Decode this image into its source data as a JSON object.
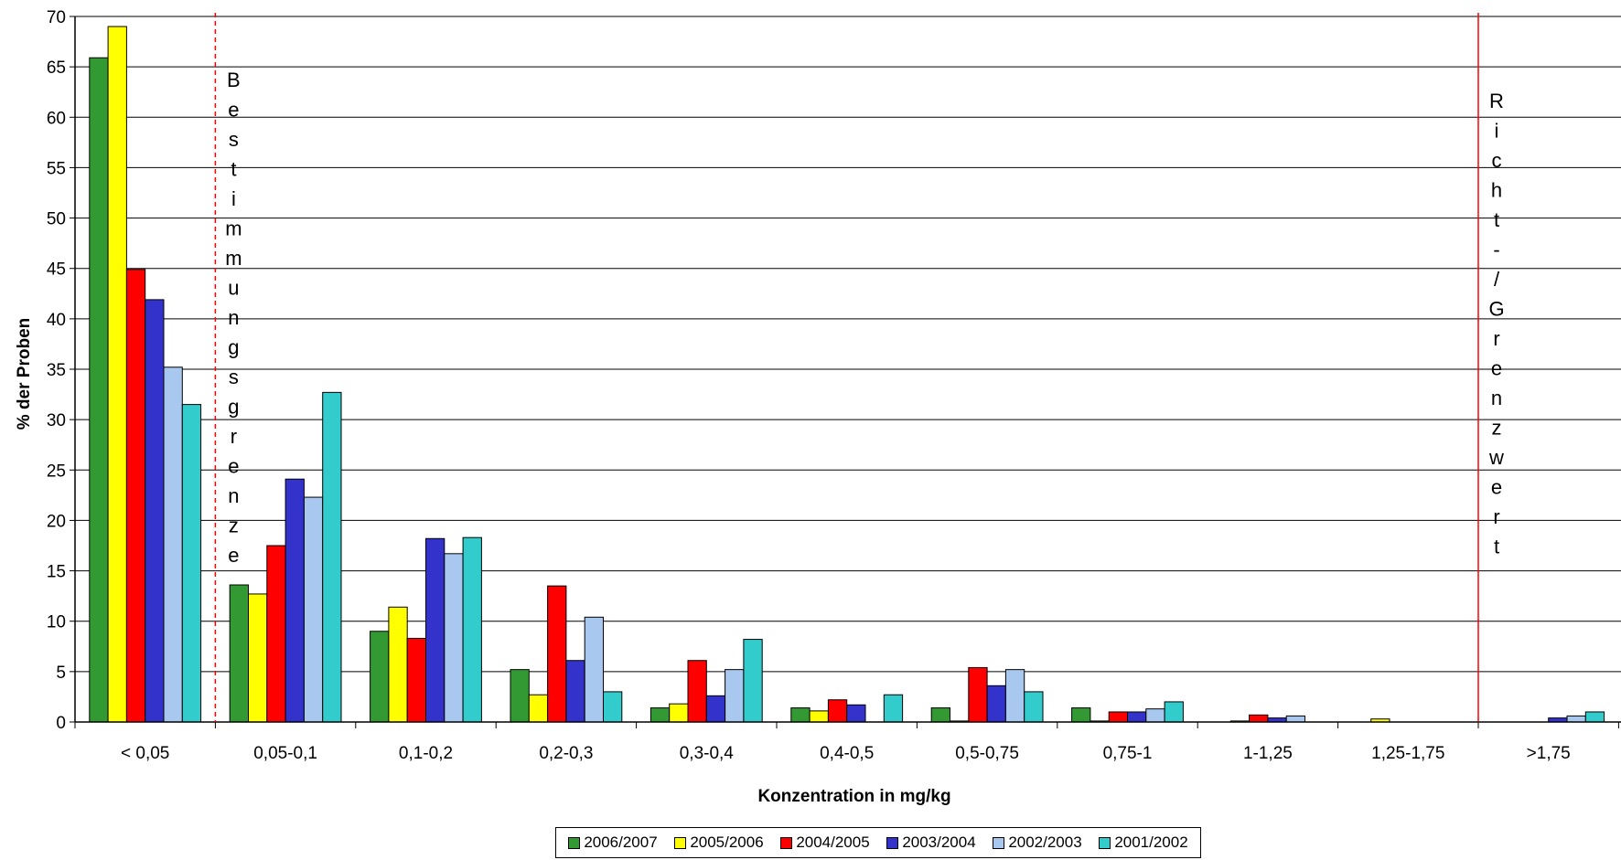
{
  "chart_data": {
    "type": "bar",
    "xlabel": "Konzentration in mg/kg",
    "ylabel": "% der Proben",
    "ylim": [
      0,
      70
    ],
    "ytick_step": 5,
    "grid": "horizontal",
    "legend_position": "bottom",
    "categories": [
      "< 0,05",
      "0,05-0,1",
      "0,1-0,2",
      "0,2-0,3",
      "0,3-0,4",
      "0,4-0,5",
      "0,5-0,75",
      "0,75-1",
      "1-1,25",
      "1,25-1,75",
      ">1,75"
    ],
    "series": [
      {
        "name": "2006/2007",
        "color": "#339933",
        "values": [
          65.9,
          13.6,
          9.0,
          5.2,
          1.4,
          1.4,
          1.4,
          1.4,
          0,
          0,
          0
        ]
      },
      {
        "name": "2005/2006",
        "color": "#ffff00",
        "values": [
          69.0,
          12.7,
          11.4,
          2.7,
          1.8,
          1.1,
          0.1,
          0.1,
          0.1,
          0.3,
          0
        ]
      },
      {
        "name": "2004/2005",
        "color": "#ff0000",
        "values": [
          44.9,
          17.5,
          8.3,
          13.5,
          6.1,
          2.2,
          5.4,
          1.0,
          0.7,
          0,
          0
        ]
      },
      {
        "name": "2003/2004",
        "color": "#3333cc",
        "values": [
          41.9,
          24.1,
          18.2,
          6.1,
          2.6,
          1.7,
          3.6,
          1.0,
          0.4,
          0,
          0.4
        ]
      },
      {
        "name": "2002/2003",
        "color": "#a8c8f0",
        "values": [
          35.2,
          22.3,
          16.7,
          10.4,
          5.2,
          0,
          5.2,
          1.3,
          0.6,
          0,
          0.6
        ]
      },
      {
        "name": "2001/2002",
        "color": "#33cccc",
        "values": [
          31.5,
          32.7,
          18.3,
          3.0,
          8.2,
          2.7,
          3.0,
          2.0,
          0,
          0,
          1.0
        ]
      }
    ],
    "reference_lines": [
      {
        "label": "Bestimmungsgrenze",
        "position_between_categories": [
          0,
          1
        ],
        "style": "dashed",
        "color": "#ff0000"
      },
      {
        "label": "Richt-/Grenzwert",
        "position_between_categories": [
          9,
          10
        ],
        "style": "solid",
        "color": "#ff0000"
      }
    ]
  }
}
